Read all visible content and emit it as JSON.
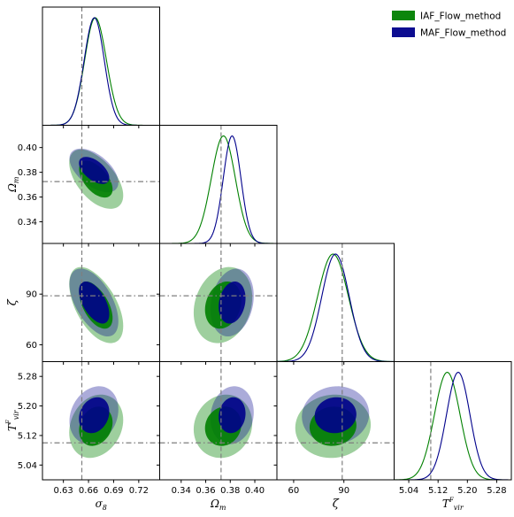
{
  "chart_data": {
    "type": "triangle-corner",
    "parameters": [
      {
        "key": "sigma8",
        "label": "σ8",
        "ticks": [
          0.63,
          0.66,
          0.69,
          0.72
        ],
        "tick_labels": [
          "0.63",
          "0.66",
          "0.69",
          "0.72"
        ],
        "range": [
          0.605,
          0.745
        ],
        "truth": 0.652
      },
      {
        "key": "omega_m",
        "label": "Ωm",
        "ticks": [
          0.34,
          0.36,
          0.38,
          0.4
        ],
        "tick_labels": [
          "0.34",
          "0.36",
          "0.38",
          "0.40"
        ],
        "range": [
          0.3225,
          0.418
        ],
        "truth": 0.3725
      },
      {
        "key": "zeta",
        "label": "ζ",
        "ticks": [
          60,
          90
        ],
        "tick_labels": [
          "60",
          "90"
        ],
        "range": [
          50,
          120
        ],
        "truth": 89
      },
      {
        "key": "tvir",
        "label": "TFvir",
        "ticks": [
          5.04,
          5.12,
          5.2,
          5.28
        ],
        "tick_labels": [
          "5.04",
          "5.12",
          "5.20",
          "5.28"
        ],
        "range": [
          5.0,
          5.32
        ],
        "truth": 5.1
      }
    ],
    "legend": {
      "position": "top-right",
      "entries": [
        "IAF_Flow_method",
        "MAF_Flow_method"
      ]
    },
    "series": [
      {
        "name": "IAF_Flow_method",
        "color": "#008000",
        "mean": [
          0.668,
          0.3745,
          83.5,
          5.145
        ],
        "sd": [
          0.013,
          0.0098,
          9.2,
          0.035
        ],
        "corr": [
          [
            1,
            -0.55,
            -0.55,
            0.2
          ],
          [
            -0.55,
            1,
            0.2,
            0.1
          ],
          [
            -0.55,
            0.2,
            1,
            0.05
          ],
          [
            0.2,
            0.1,
            0.05,
            1
          ]
        ],
        "skew": [
          0.2,
          -0.1,
          0.0,
          0.0
        ]
      },
      {
        "name": "MAF_Flow_method",
        "color": "#00008b",
        "mean": [
          0.667,
          0.3815,
          85.0,
          5.175
        ],
        "sd": [
          0.012,
          0.0072,
          8.2,
          0.032
        ],
        "corr": [
          [
            1,
            -0.55,
            -0.55,
            0.2
          ],
          [
            -0.55,
            1,
            0.2,
            0.1
          ],
          [
            -0.55,
            0.2,
            1,
            0.05
          ],
          [
            0.2,
            0.1,
            0.05,
            1
          ]
        ],
        "skew": [
          -0.1,
          0.0,
          0.0,
          0.0
        ]
      }
    ],
    "contour_levels": [
      "68%",
      "95%"
    ],
    "truth_line_style": "dashed grey (vertical), dash-dot grey (horizontal)"
  }
}
